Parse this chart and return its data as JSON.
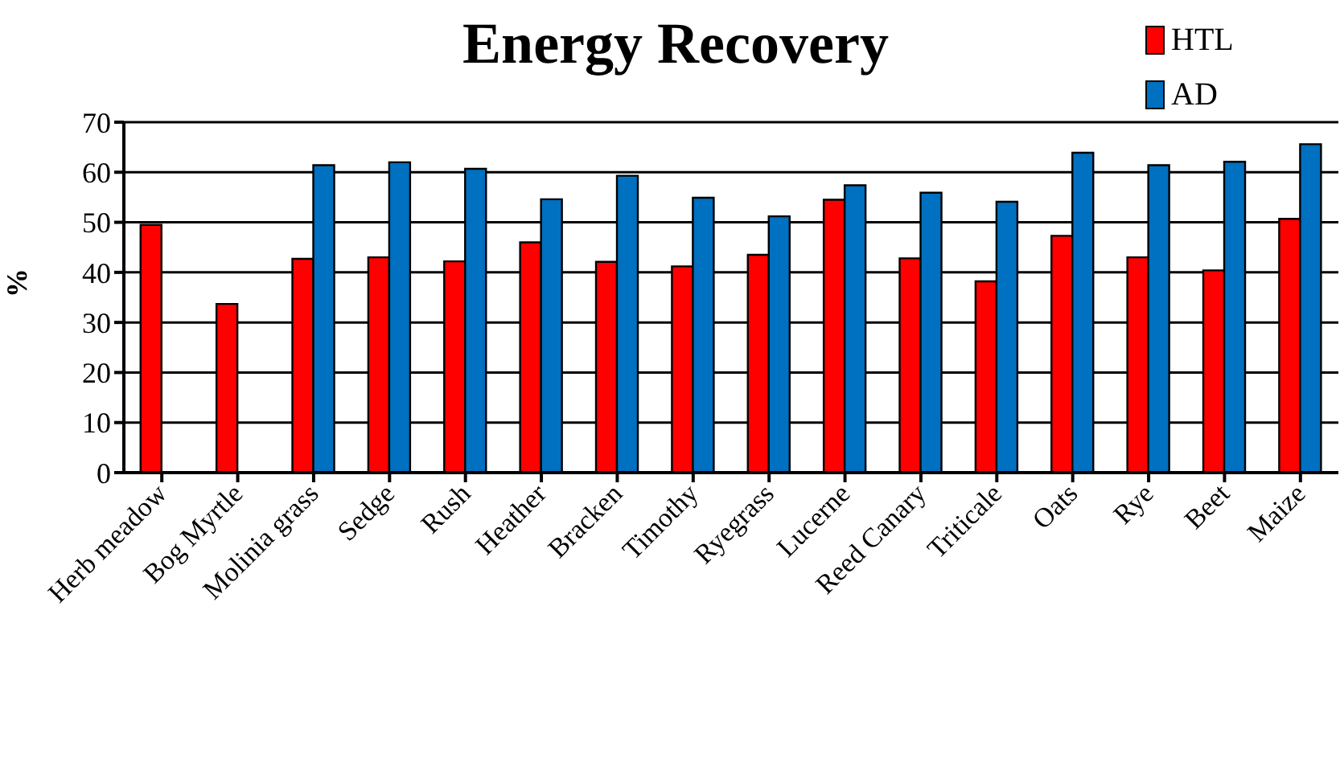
{
  "chart_data": {
    "type": "bar",
    "title": "Energy Recovery",
    "ylabel": "%",
    "categories": [
      "Herb meadow",
      "Bog Myrtle",
      "Molinia grass",
      "Sedge",
      "Rush",
      "Heather",
      "Bracken",
      "Timothy",
      "Ryegrass",
      "Lucerne",
      "Reed Canary",
      "Triticale",
      "Oats",
      "Rye",
      "Beet",
      "Maize"
    ],
    "series": [
      {
        "name": "HTL",
        "color": "#ff0000",
        "values": [
          49.5,
          33.7,
          42.7,
          43.0,
          42.2,
          46.0,
          42.1,
          41.2,
          43.5,
          54.5,
          42.8,
          38.2,
          47.3,
          43.0,
          40.4,
          50.7
        ]
      },
      {
        "name": "AD",
        "color": "#0070c0",
        "values": [
          null,
          null,
          61.4,
          62.0,
          60.7,
          54.6,
          59.3,
          54.9,
          51.2,
          57.4,
          55.9,
          54.1,
          63.9,
          61.4,
          62.1,
          65.6
        ]
      }
    ],
    "ylim": [
      0,
      70
    ],
    "yticks": [
      0,
      10,
      20,
      30,
      40,
      50,
      60,
      70
    ],
    "grid": "y",
    "legend": "top right"
  }
}
